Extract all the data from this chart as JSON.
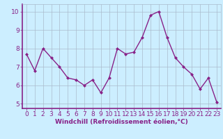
{
  "x": [
    0,
    1,
    2,
    3,
    4,
    5,
    6,
    7,
    8,
    9,
    10,
    11,
    12,
    13,
    14,
    15,
    16,
    17,
    18,
    19,
    20,
    21,
    22,
    23
  ],
  "y": [
    7.7,
    6.8,
    8.0,
    7.5,
    7.0,
    6.4,
    6.3,
    6.0,
    6.3,
    5.6,
    6.4,
    8.0,
    7.7,
    7.8,
    8.6,
    9.8,
    10.0,
    8.6,
    7.5,
    7.0,
    6.6,
    5.8,
    6.4,
    5.1
  ],
  "line_color": "#882288",
  "marker": "D",
  "marker_size": 2.0,
  "bg_color": "#cceeff",
  "grid_color": "#aabbcc",
  "xlabel": "Windchill (Refroidissement éolien,°C)",
  "ylabel": "",
  "xlim": [
    -0.5,
    23.5
  ],
  "ylim": [
    4.75,
    10.4
  ],
  "yticks": [
    5,
    6,
    7,
    8,
    9,
    10
  ],
  "xticks": [
    0,
    1,
    2,
    3,
    4,
    5,
    6,
    7,
    8,
    9,
    10,
    11,
    12,
    13,
    14,
    15,
    16,
    17,
    18,
    19,
    20,
    21,
    22,
    23
  ],
  "title": "",
  "xlabel_fontsize": 6.5,
  "tick_fontsize": 6.5,
  "spine_color": "#882288",
  "axis_bottom_color": "#882288",
  "line_width": 1.0
}
